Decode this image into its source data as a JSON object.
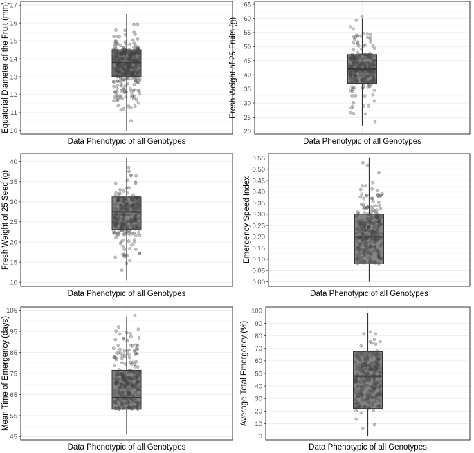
{
  "chart_data": [
    {
      "type": "box",
      "ylabel": "Equatorial Diameter of the Fruit (mm)",
      "xlabel": "Data Phenotypic of all Genotypes",
      "ylim": [
        9.8,
        17.2
      ],
      "yticks": [
        10,
        11,
        12,
        13,
        14,
        15,
        16,
        17
      ],
      "box": {
        "min": 10.0,
        "q1": 13.0,
        "median": 13.8,
        "q3": 14.5,
        "max": 16.5
      },
      "points": {
        "count": 360,
        "low": 10.0,
        "high": 16.8
      },
      "grid": true
    },
    {
      "type": "box",
      "ylabel": "Fresh Weight of 25 Fruits (g)",
      "xlabel": "Data Phenotypic of all Genotypes",
      "ylim": [
        19,
        66
      ],
      "yticks": [
        20,
        25,
        30,
        35,
        40,
        45,
        50,
        55,
        60,
        65
      ],
      "box": {
        "min": 22,
        "q1": 37,
        "median": 42,
        "q3": 47.2,
        "max": 60
      },
      "points": {
        "count": 240,
        "low": 20.5,
        "high": 63.5
      },
      "grid": true
    },
    {
      "type": "box",
      "ylabel": "Fresh Weight of 25 Seed (g)",
      "xlabel": "Data Phenotypic of all Genotypes",
      "ylim": [
        9,
        42
      ],
      "yticks": [
        10,
        15,
        20,
        25,
        30,
        35,
        40
      ],
      "box": {
        "min": 10.5,
        "q1": 23.2,
        "median": 27.5,
        "q3": 31.2,
        "max": 41
      },
      "points": {
        "count": 240,
        "low": 10.5,
        "high": 41.5
      },
      "grid": true
    },
    {
      "type": "box",
      "ylabel": "Emergency Speed Index",
      "xlabel": "Data Phenotypic of all Genotypes",
      "ylim": [
        -0.02,
        0.57
      ],
      "yticks": [
        0.0,
        0.05,
        0.1,
        0.15,
        0.2,
        0.25,
        0.3,
        0.35,
        0.4,
        0.45,
        0.5,
        0.55
      ],
      "ytick_labels": [
        "0.00",
        "0.05",
        "0.10",
        "0.15",
        "0.20",
        "0.25",
        "0.30",
        "0.35",
        "0.40",
        "0.45",
        "0.50",
        "0.55"
      ],
      "box": {
        "min": 0.0,
        "q1": 0.08,
        "median": 0.2,
        "q3": 0.3,
        "max": 0.55
      },
      "points": {
        "count": 240,
        "low": 0.0,
        "high": 0.55
      },
      "grid": true
    },
    {
      "type": "box",
      "ylabel": "Mean Time of Emergency (days)",
      "xlabel": "Data Phenotypic of all Genotypes",
      "ylim": [
        43.5,
        106.5
      ],
      "yticks": [
        45,
        55,
        65,
        75,
        85,
        95,
        105
      ],
      "box": {
        "min": 46,
        "q1": 58,
        "median": 63.5,
        "q3": 76.5,
        "max": 102
      },
      "points": {
        "count": 240,
        "low": 46,
        "high": 105
      },
      "grid": true
    },
    {
      "type": "box",
      "ylabel": "Average Total Emergency (%)",
      "xlabel": "Data Phenotypic of all Genotypes",
      "ylim": [
        -3,
        103
      ],
      "yticks": [
        0,
        10,
        20,
        30,
        40,
        50,
        60,
        70,
        80,
        90,
        100
      ],
      "box": {
        "min": 0,
        "q1": 22,
        "median": 48,
        "q3": 67.5,
        "max": 98
      },
      "points": {
        "count": 240,
        "low": 0,
        "high": 97
      },
      "grid": true
    }
  ],
  "colors": {
    "box_fill": "#858585",
    "box_stroke": "#333333",
    "point": "#404040",
    "grid": "#ebebeb",
    "panel_border": "#333333"
  }
}
